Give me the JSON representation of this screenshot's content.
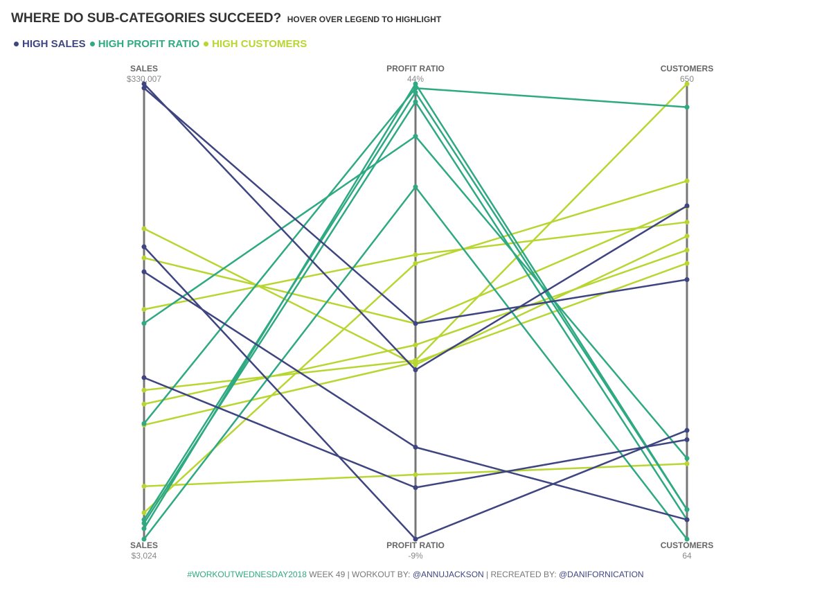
{
  "title": {
    "main": "WHERE DO SUB-CATEGORIES SUCCEED?",
    "sub": "HOVER OVER LEGEND TO HIGHLIGHT"
  },
  "legend": [
    {
      "label": "HIGH SALES",
      "color": "#3e4580"
    },
    {
      "label": "HIGH PROFIT RATIO",
      "color": "#2ea982"
    },
    {
      "label": "HIGH CUSTOMERS",
      "color": "#b7d631"
    }
  ],
  "footer": {
    "tag": "#WORKOUTWEDNESDAY2018",
    "week": " WEEK 49 | WORKOUT BY: ",
    "author": "@ANNUJACKSON",
    "recreated": " | RECREATED BY: ",
    "recreator": "@DANIFORNICATION"
  },
  "chart_data": {
    "type": "parallel-coordinates",
    "axis_color": "#777777",
    "axes": [
      {
        "name": "SALES",
        "max_label": "$330,007",
        "min_label": "$3,024",
        "min": 3024,
        "max": 330007
      },
      {
        "name": "PROFIT RATIO",
        "max_label": "44%",
        "min_label": "-9%",
        "min": -9,
        "max": 44
      },
      {
        "name": "CUSTOMERS",
        "max_label": "650",
        "min_label": "64",
        "min": 64,
        "max": 650
      }
    ],
    "series": [
      {
        "group": "HIGH SALES",
        "values": [
          330007,
          10.7,
          493
        ]
      },
      {
        "group": "HIGH SALES",
        "values": [
          327000,
          16.1,
          398
        ]
      },
      {
        "group": "HIGH SALES",
        "values": [
          213000,
          -9,
          204
        ]
      },
      {
        "group": "HIGH SALES",
        "values": [
          195000,
          1.7,
          89
        ]
      },
      {
        "group": "HIGH SALES",
        "values": [
          119000,
          -3.0,
          192
        ]
      },
      {
        "group": "HIGH PROFIT RATIO",
        "values": [
          158000,
          37.9,
          168
        ]
      },
      {
        "group": "HIGH PROFIT RATIO",
        "values": [
          86000,
          43.5,
          620
        ]
      },
      {
        "group": "HIGH PROFIT RATIO",
        "values": [
          17000,
          43.0,
          102
        ]
      },
      {
        "group": "HIGH PROFIT RATIO",
        "values": [
          14500,
          41.9,
          89
        ]
      },
      {
        "group": "HIGH PROFIT RATIO",
        "values": [
          3024,
          32.0,
          64
        ]
      },
      {
        "group": "HIGH PROFIT RATIO",
        "values": [
          10600,
          44,
          102
        ]
      },
      {
        "group": "HIGH CUSTOMERS",
        "values": [
          226000,
          11.3,
          454
        ]
      },
      {
        "group": "HIGH CUSTOMERS",
        "values": [
          205000,
          16.1,
          492
        ]
      },
      {
        "group": "HIGH CUSTOMERS",
        "values": [
          168000,
          24.1,
          472
        ]
      },
      {
        "group": "HIGH CUSTOMERS",
        "values": [
          100000,
          13.6,
          436
        ]
      },
      {
        "group": "HIGH CUSTOMERS",
        "values": [
          110000,
          11.8,
          650
        ]
      },
      {
        "group": "HIGH CUSTOMERS",
        "values": [
          85000,
          11.6,
          419
        ]
      },
      {
        "group": "HIGH CUSTOMERS",
        "values": [
          22000,
          23.1,
          525
        ]
      },
      {
        "group": "HIGH CUSTOMERS",
        "values": [
          41000,
          -1.5,
          161
        ]
      }
    ]
  }
}
